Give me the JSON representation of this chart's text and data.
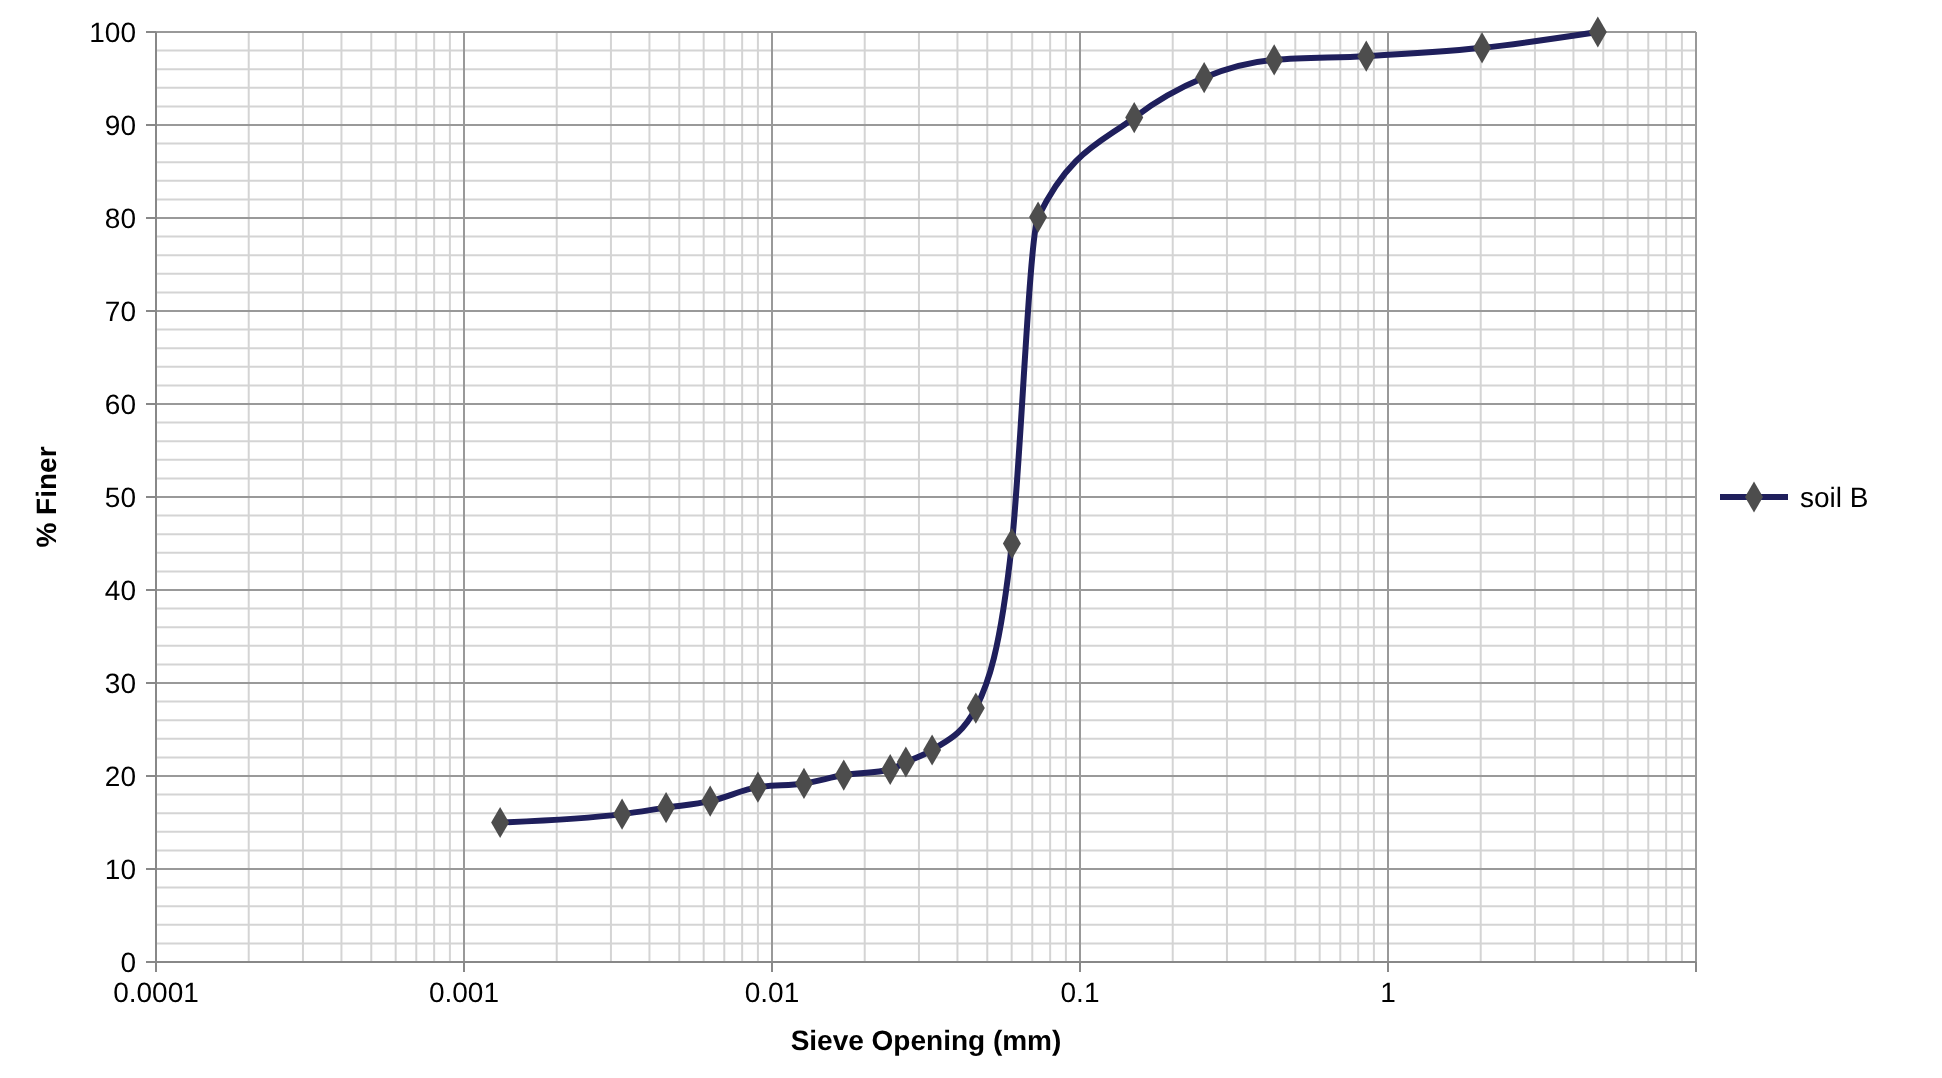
{
  "chart_data": {
    "type": "line",
    "xlabel": "Sieve Opening (mm)",
    "ylabel": "% Finer",
    "log": "x",
    "grid": true,
    "legend": "right",
    "marker": "diamond",
    "line_style": "solid",
    "xlim": [
      0.0001,
      10
    ],
    "xticks": [
      0.0001,
      0.001,
      0.01,
      0.1,
      1,
      {
        "value": 10,
        "label": null
      }
    ],
    "ylim": [
      0,
      100
    ],
    "yticks": [
      0,
      10,
      20,
      30,
      40,
      50,
      60,
      70,
      80,
      90,
      100
    ],
    "series": [
      {
        "name": "soil B",
        "color": "#1f1f5c",
        "x": [
          0.00131,
          0.00326,
          0.00453,
          0.0063,
          0.009,
          0.0127,
          0.0171,
          0.0242,
          0.0272,
          0.0331,
          0.0459,
          0.0601,
          0.0731,
          0.15,
          0.253,
          0.427,
          0.85,
          2.02,
          4.8
        ],
        "values": [
          15,
          15.9,
          16.6,
          17.3,
          18.8,
          19.2,
          20.1,
          20.7,
          21.5,
          22.8,
          27.3,
          45,
          80.1,
          90.8,
          95.1,
          97,
          97.4,
          98.3,
          100
        ]
      }
    ]
  }
}
